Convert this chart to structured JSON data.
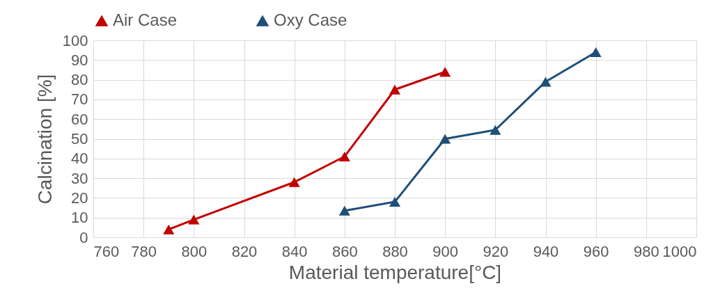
{
  "chart_data": {
    "type": "line",
    "xlabel": "Material temperature[°C]",
    "ylabel": "Calcination [%]",
    "xlim": [
      760,
      1000
    ],
    "xticks": [
      760,
      780,
      800,
      820,
      840,
      860,
      880,
      900,
      920,
      940,
      960,
      980,
      1000
    ],
    "ylim": [
      0,
      100
    ],
    "yticks": [
      0,
      10,
      20,
      30,
      40,
      50,
      60,
      70,
      80,
      90,
      100
    ],
    "grid": true,
    "legend": "top",
    "marker": "triangle",
    "line_style": "solid",
    "series": [
      {
        "name": "Air Case",
        "color": "#c00000",
        "x": [
          790,
          800,
          840,
          860,
          880,
          900
        ],
        "values": [
          4,
          9,
          28,
          41,
          75,
          84
        ]
      },
      {
        "name": "Oxy Case",
        "color": "#1f4e79",
        "x": [
          860,
          880,
          900,
          920,
          940,
          960
        ],
        "values": [
          13.5,
          18,
          50,
          54.5,
          79,
          94
        ]
      }
    ]
  }
}
